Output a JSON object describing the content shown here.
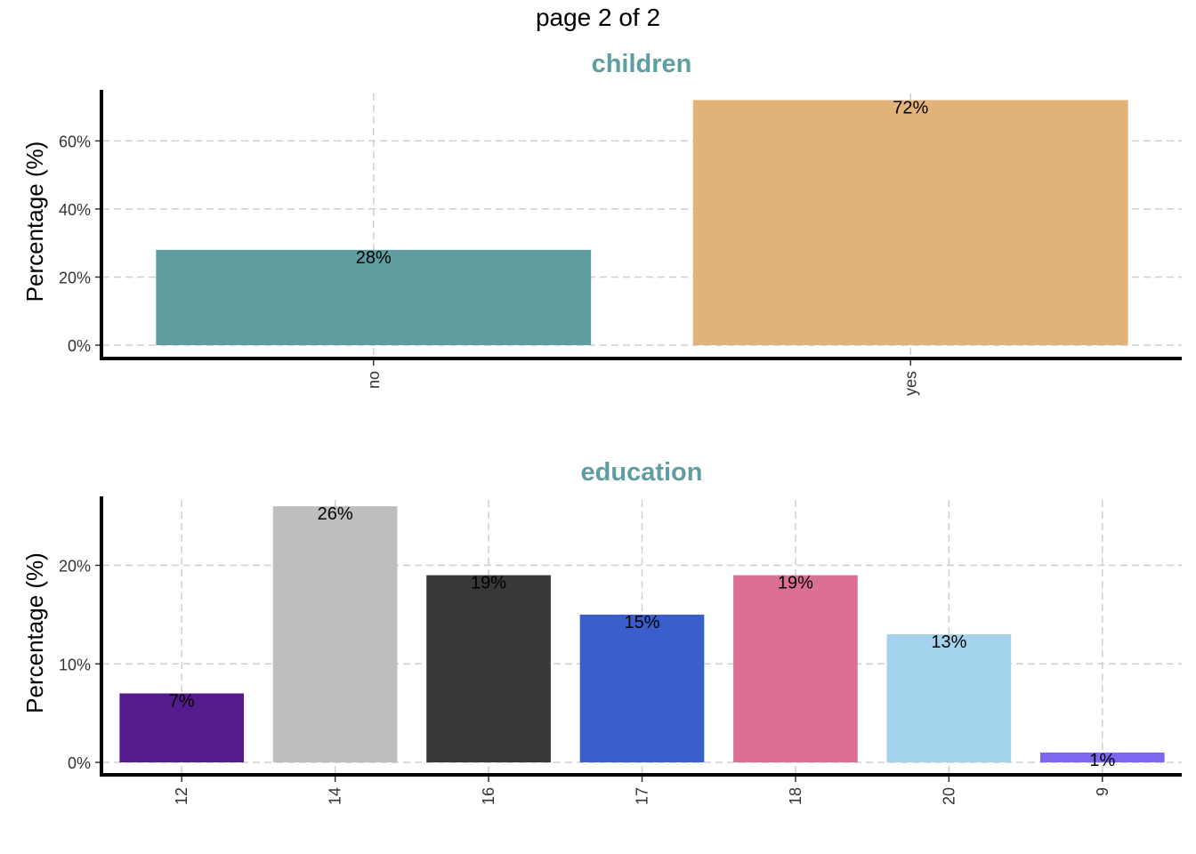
{
  "page_title": "page 2 of 2",
  "chart_data": [
    {
      "type": "bar",
      "title": "children",
      "title_color": "#5F9EA0",
      "xlabel": "",
      "ylabel": "Percentage (%)",
      "categories": [
        "no",
        "yes"
      ],
      "values": [
        28,
        72
      ],
      "labels": [
        "28%",
        "72%"
      ],
      "colors": [
        "#5F9EA0",
        "#E1B378"
      ],
      "yticks": [
        0,
        20,
        40,
        60
      ],
      "ytick_labels": [
        "0%",
        "20%",
        "40%",
        "60%"
      ],
      "ylim": [
        0,
        75
      ],
      "grid": true
    },
    {
      "type": "bar",
      "title": "education",
      "title_color": "#5F9EA0",
      "xlabel": "",
      "ylabel": "Percentage (%)",
      "categories": [
        "12",
        "14",
        "16",
        "17",
        "18",
        "20",
        "9"
      ],
      "values": [
        7,
        26,
        19,
        15,
        19,
        13,
        1
      ],
      "labels": [
        "7%",
        "26%",
        "19%",
        "15%",
        "19%",
        "13%",
        "1%"
      ],
      "colors": [
        "#551A8B",
        "#BEBEBE",
        "#383838",
        "#3A5FCD",
        "#DB7093",
        "#A4D3EE",
        "#7B68EE"
      ],
      "yticks": [
        0,
        10,
        20
      ],
      "ytick_labels": [
        "0%",
        "10%",
        "20%"
      ],
      "ylim": [
        0,
        27
      ],
      "grid": true
    }
  ]
}
